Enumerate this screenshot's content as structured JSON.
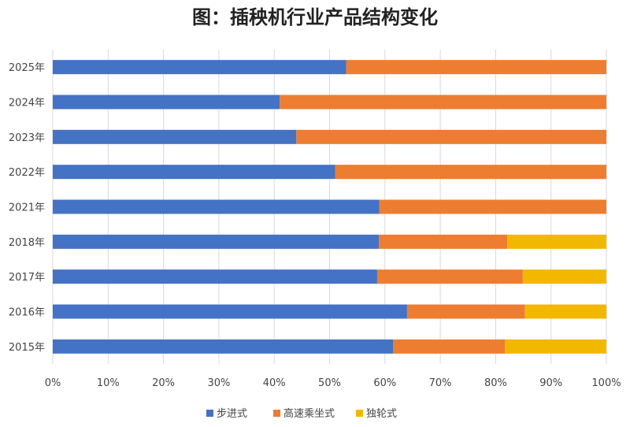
{
  "chart_data": {
    "type": "bar",
    "orientation": "horizontal",
    "stacked": "percent",
    "title": "图：插秧机行业产品结构变化",
    "categories": [
      "2025年",
      "2024年",
      "2023年",
      "2022年",
      "2021年",
      "2018年",
      "2017年",
      "2016年",
      "2015年"
    ],
    "series": [
      {
        "name": "步进式",
        "color": "#4472C4",
        "values": [
          53,
          41,
          44,
          51,
          59,
          58.9,
          58.6,
          64.0,
          61.5
        ]
      },
      {
        "name": "高速乘坐式",
        "color": "#ED7D31",
        "values": [
          47,
          59,
          56,
          49,
          41,
          23.2,
          26.3,
          21.3,
          20.2
        ]
      },
      {
        "name": "独轮式",
        "color": "#F2B800",
        "values": [
          0,
          0,
          0,
          0,
          0,
          17.9,
          15.1,
          14.7,
          18.3
        ]
      }
    ],
    "xticks": [
      "0%",
      "10%",
      "20%",
      "30%",
      "40%",
      "50%",
      "60%",
      "70%",
      "80%",
      "90%",
      "100%"
    ],
    "xlim": [
      0,
      100
    ],
    "grid": true,
    "legend": "bottom"
  }
}
